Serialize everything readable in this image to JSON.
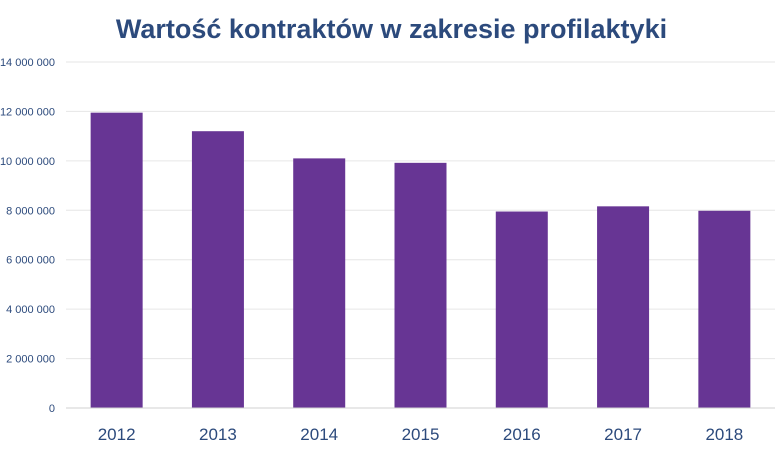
{
  "chart_data": {
    "type": "bar",
    "title": "Wartość kontraktów w zakresie profilaktyki",
    "xlabel": "",
    "ylabel": "",
    "categories": [
      "2012",
      "2013",
      "2014",
      "2015",
      "2016",
      "2017",
      "2018"
    ],
    "values": [
      11950000,
      11200000,
      10100000,
      9920000,
      7950000,
      8160000,
      7980000
    ],
    "ylim": [
      0,
      14000000
    ],
    "yticks": [
      0,
      2000000,
      4000000,
      6000000,
      8000000,
      10000000,
      12000000,
      14000000
    ],
    "ytick_labels": [
      "0",
      "2 000 000",
      "4 000 000",
      "6 000 000",
      "8 000 000",
      "10 000 000",
      "12 000 000",
      "14 000 000"
    ],
    "grid": true,
    "legend": "none",
    "colors": {
      "bar": "#673594",
      "title": "#2c4a7c",
      "tick_text": "#2c4a7c",
      "gridline": "#e6e6e6",
      "axis": "#d0d0d0"
    }
  }
}
